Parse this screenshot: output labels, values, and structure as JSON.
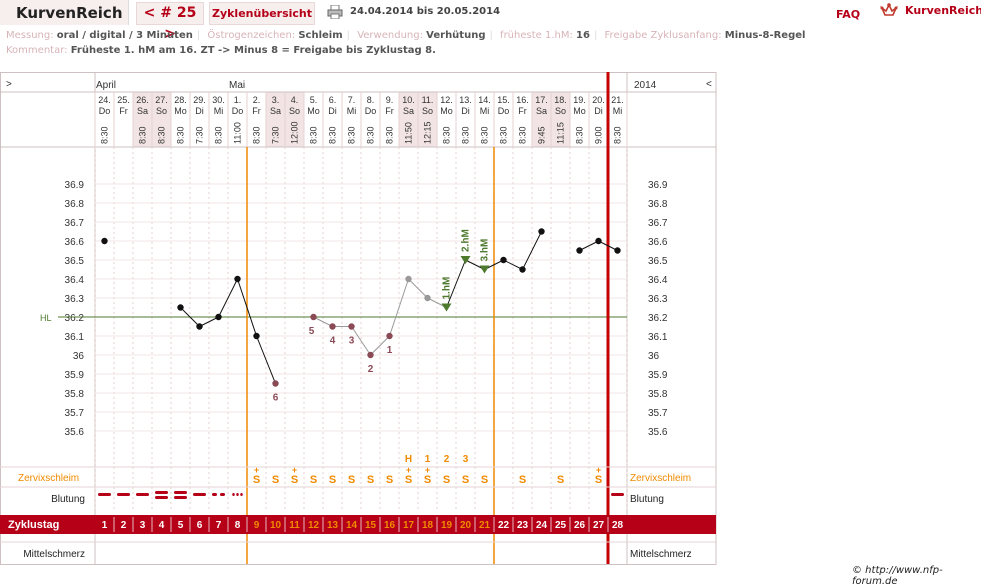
{
  "header": {
    "logo": "KurvenReich",
    "cycle_nav": "< # 25 >",
    "overview_tab": "Zyklenübersicht",
    "daterange": "24.04.2014 bis 20.05.2014",
    "faq": "FAQ",
    "brand": "KurvenReich"
  },
  "meta": {
    "messung_label": "Messung:",
    "messung_value": "oral / digital / 3 Minuten",
    "oestrogen_label": "Östrogenzeichen:",
    "oestrogen_value": "Schleim",
    "verwendung_label": "Verwendung:",
    "verwendung_value": "Verhütung",
    "fruehest_label": "früheste 1.hM:",
    "fruehest_value": "16",
    "freigabe_label": "Freigabe Zyklusanfang:",
    "freigabe_value": "Minus-8-Regel",
    "kommentar_label": "Kommentar:",
    "kommentar_value": "Früheste 1. hM am 16. ZT -> Minus 8 = Freigabe bis Zyklustag 8."
  },
  "chart_data": {
    "type": "line",
    "year": "2014",
    "nav_left": ">",
    "nav_right": "<",
    "months": [
      {
        "label": "April",
        "start_index": 0
      },
      {
        "label": "Mai",
        "start_index": 7
      }
    ],
    "days": [
      {
        "date": "24.",
        "weekday": "Do",
        "time": "8:30"
      },
      {
        "date": "25.",
        "weekday": "Fr",
        "time": ""
      },
      {
        "date": "26.",
        "weekday": "Sa",
        "time": "8:30"
      },
      {
        "date": "27.",
        "weekday": "So",
        "time": "8:30"
      },
      {
        "date": "28.",
        "weekday": "Mo",
        "time": "8:30"
      },
      {
        "date": "29.",
        "weekday": "Di",
        "time": "7:30"
      },
      {
        "date": "30.",
        "weekday": "Mi",
        "time": "8:30"
      },
      {
        "date": "1.",
        "weekday": "Do",
        "time": "11:00"
      },
      {
        "date": "2.",
        "weekday": "Fr",
        "time": "8:30"
      },
      {
        "date": "3.",
        "weekday": "Sa",
        "time": "7:30"
      },
      {
        "date": "4.",
        "weekday": "So",
        "time": "12:00"
      },
      {
        "date": "5.",
        "weekday": "Mo",
        "time": "8:30"
      },
      {
        "date": "6.",
        "weekday": "Di",
        "time": "8:30"
      },
      {
        "date": "7.",
        "weekday": "Mi",
        "time": "8:30"
      },
      {
        "date": "8.",
        "weekday": "Do",
        "time": "8:30"
      },
      {
        "date": "9.",
        "weekday": "Fr",
        "time": "8:30"
      },
      {
        "date": "10.",
        "weekday": "Sa",
        "time": "11:50"
      },
      {
        "date": "11.",
        "weekday": "So",
        "time": "12:15"
      },
      {
        "date": "12.",
        "weekday": "Mo",
        "time": "8:30"
      },
      {
        "date": "13.",
        "weekday": "Di",
        "time": "8:30"
      },
      {
        "date": "14.",
        "weekday": "Mi",
        "time": "8:30"
      },
      {
        "date": "15.",
        "weekday": "Do",
        "time": "8:30"
      },
      {
        "date": "16.",
        "weekday": "Fr",
        "time": "8:30"
      },
      {
        "date": "17.",
        "weekday": "Sa",
        "time": "9:45"
      },
      {
        "date": "18.",
        "weekday": "So",
        "time": "11:15"
      },
      {
        "date": "19.",
        "weekday": "Mo",
        "time": "8:30"
      },
      {
        "date": "20.",
        "weekday": "Di",
        "time": "9:00"
      },
      {
        "date": "21.",
        "weekday": "Mi",
        "time": "8:30"
      }
    ],
    "temperatures": [
      36.6,
      null,
      null,
      null,
      36.25,
      36.15,
      36.2,
      36.4,
      36.1,
      35.85,
      null,
      36.2,
      36.15,
      36.15,
      36.0,
      36.1,
      36.4,
      36.3,
      36.25,
      36.5,
      36.45,
      36.5,
      36.45,
      36.65,
      null,
      36.55,
      36.6,
      36.55
    ],
    "excluded_days": [
      9,
      11,
      12,
      13,
      14,
      15
    ],
    "grey_days": [
      16,
      17
    ],
    "hm_markers": [
      {
        "day": 18,
        "label": "1.hM"
      },
      {
        "day": 19,
        "label": "2.hM"
      },
      {
        "day": 20,
        "label": "3.hM"
      }
    ],
    "counting_labels": [
      {
        "day": 9,
        "label": "6"
      },
      {
        "day": 11,
        "label": "5"
      },
      {
        "day": 12,
        "label": "4"
      },
      {
        "day": 13,
        "label": "3"
      },
      {
        "day": 14,
        "label": "2"
      },
      {
        "day": 15,
        "label": "1"
      }
    ],
    "y_ticks": [
      "36.9",
      "36.8",
      "36.7",
      "36.6",
      "36.5",
      "36.4",
      "36.3",
      "36.2",
      "36.1",
      "36",
      "35.9",
      "35.8",
      "35.7",
      "35.6"
    ],
    "ylim": [
      35.5,
      37.05
    ],
    "hl_value": 36.2,
    "hl_label": "HL",
    "orange_lines_after_day": [
      7,
      20
    ],
    "red_line_after_day": 26,
    "ovulation_letters": [
      {
        "day": 16,
        "label": "H"
      },
      {
        "day": 17,
        "label": "1"
      },
      {
        "day": 18,
        "label": "2"
      },
      {
        "day": 19,
        "label": "3"
      }
    ],
    "mucus_label": "Zervixschleim",
    "mucus": [
      "",
      "",
      "",
      "",
      "",
      "",
      "",
      "",
      "S+",
      "S",
      "S+",
      "S",
      "S",
      "S",
      "S",
      "S",
      "S+",
      "S+",
      "S",
      "S",
      "S",
      "",
      "S",
      "",
      "S",
      "",
      "S+",
      ""
    ],
    "bleeding_label": "Blutung",
    "bleeding": [
      "heavy",
      "heavy",
      "heavy",
      "veryheavy",
      "veryheavy",
      "heavy",
      "medium",
      "light",
      "",
      "",
      "",
      "",
      "",
      "",
      "",
      "",
      "",
      "",
      "",
      "",
      "",
      "",
      "",
      "",
      "",
      "",
      "",
      "heavy"
    ],
    "cycle_label": "Zyklustag",
    "cycle_days": [
      "1",
      "2",
      "3",
      "4",
      "5",
      "6",
      "7",
      "8",
      "9",
      "10",
      "11",
      "12",
      "13",
      "14",
      "15",
      "16",
      "17",
      "18",
      "19",
      "20",
      "21",
      "22",
      "23",
      "24",
      "25",
      "26",
      "27",
      "28"
    ],
    "mittelschmerz_label": "Mittelschmerz",
    "colors": {
      "accent": "#b50018",
      "orange": "#f08a00",
      "green": "#4e7a2e",
      "weekend": "#f2e4e4",
      "grid": "#e7d2d2"
    }
  },
  "footer": {
    "copyright": "© http://www.nfp-forum.de"
  }
}
